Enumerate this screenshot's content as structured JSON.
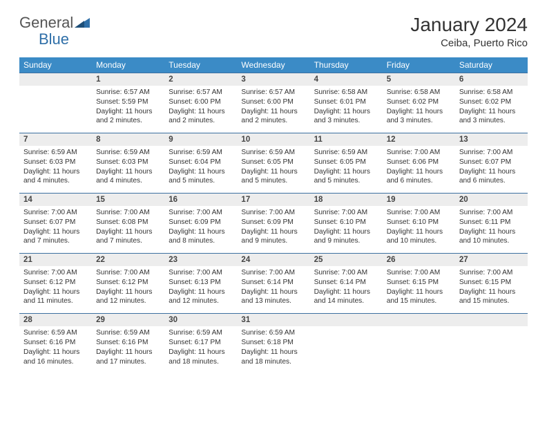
{
  "brand": {
    "part1": "General",
    "part2": "Blue"
  },
  "title": "January 2024",
  "location": "Ceiba, Puerto Rico",
  "colors": {
    "header_bg": "#3b8bc6",
    "header_text": "#ffffff",
    "daynum_bg": "#ededed",
    "row_border": "#3b6fa0",
    "text": "#333333",
    "brand_gray": "#555555",
    "brand_blue": "#2f6fa8",
    "page_bg": "#ffffff"
  },
  "typography": {
    "title_fontsize": 28,
    "location_fontsize": 15,
    "header_fontsize": 12,
    "daynum_fontsize": 11.5,
    "cell_fontsize": 10.2
  },
  "headers": [
    "Sunday",
    "Monday",
    "Tuesday",
    "Wednesday",
    "Thursday",
    "Friday",
    "Saturday"
  ],
  "weeks": [
    {
      "nums": [
        "",
        "1",
        "2",
        "3",
        "4",
        "5",
        "6"
      ],
      "cells": [
        {
          "empty": true
        },
        {
          "sunrise": "6:57 AM",
          "sunset": "5:59 PM",
          "daylight": "11 hours and 2 minutes."
        },
        {
          "sunrise": "6:57 AM",
          "sunset": "6:00 PM",
          "daylight": "11 hours and 2 minutes."
        },
        {
          "sunrise": "6:57 AM",
          "sunset": "6:00 PM",
          "daylight": "11 hours and 2 minutes."
        },
        {
          "sunrise": "6:58 AM",
          "sunset": "6:01 PM",
          "daylight": "11 hours and 3 minutes."
        },
        {
          "sunrise": "6:58 AM",
          "sunset": "6:02 PM",
          "daylight": "11 hours and 3 minutes."
        },
        {
          "sunrise": "6:58 AM",
          "sunset": "6:02 PM",
          "daylight": "11 hours and 3 minutes."
        }
      ]
    },
    {
      "nums": [
        "7",
        "8",
        "9",
        "10",
        "11",
        "12",
        "13"
      ],
      "cells": [
        {
          "sunrise": "6:59 AM",
          "sunset": "6:03 PM",
          "daylight": "11 hours and 4 minutes."
        },
        {
          "sunrise": "6:59 AM",
          "sunset": "6:03 PM",
          "daylight": "11 hours and 4 minutes."
        },
        {
          "sunrise": "6:59 AM",
          "sunset": "6:04 PM",
          "daylight": "11 hours and 5 minutes."
        },
        {
          "sunrise": "6:59 AM",
          "sunset": "6:05 PM",
          "daylight": "11 hours and 5 minutes."
        },
        {
          "sunrise": "6:59 AM",
          "sunset": "6:05 PM",
          "daylight": "11 hours and 5 minutes."
        },
        {
          "sunrise": "7:00 AM",
          "sunset": "6:06 PM",
          "daylight": "11 hours and 6 minutes."
        },
        {
          "sunrise": "7:00 AM",
          "sunset": "6:07 PM",
          "daylight": "11 hours and 6 minutes."
        }
      ]
    },
    {
      "nums": [
        "14",
        "15",
        "16",
        "17",
        "18",
        "19",
        "20"
      ],
      "cells": [
        {
          "sunrise": "7:00 AM",
          "sunset": "6:07 PM",
          "daylight": "11 hours and 7 minutes."
        },
        {
          "sunrise": "7:00 AM",
          "sunset": "6:08 PM",
          "daylight": "11 hours and 7 minutes."
        },
        {
          "sunrise": "7:00 AM",
          "sunset": "6:09 PM",
          "daylight": "11 hours and 8 minutes."
        },
        {
          "sunrise": "7:00 AM",
          "sunset": "6:09 PM",
          "daylight": "11 hours and 9 minutes."
        },
        {
          "sunrise": "7:00 AM",
          "sunset": "6:10 PM",
          "daylight": "11 hours and 9 minutes."
        },
        {
          "sunrise": "7:00 AM",
          "sunset": "6:10 PM",
          "daylight": "11 hours and 10 minutes."
        },
        {
          "sunrise": "7:00 AM",
          "sunset": "6:11 PM",
          "daylight": "11 hours and 10 minutes."
        }
      ]
    },
    {
      "nums": [
        "21",
        "22",
        "23",
        "24",
        "25",
        "26",
        "27"
      ],
      "cells": [
        {
          "sunrise": "7:00 AM",
          "sunset": "6:12 PM",
          "daylight": "11 hours and 11 minutes."
        },
        {
          "sunrise": "7:00 AM",
          "sunset": "6:12 PM",
          "daylight": "11 hours and 12 minutes."
        },
        {
          "sunrise": "7:00 AM",
          "sunset": "6:13 PM",
          "daylight": "11 hours and 12 minutes."
        },
        {
          "sunrise": "7:00 AM",
          "sunset": "6:14 PM",
          "daylight": "11 hours and 13 minutes."
        },
        {
          "sunrise": "7:00 AM",
          "sunset": "6:14 PM",
          "daylight": "11 hours and 14 minutes."
        },
        {
          "sunrise": "7:00 AM",
          "sunset": "6:15 PM",
          "daylight": "11 hours and 15 minutes."
        },
        {
          "sunrise": "7:00 AM",
          "sunset": "6:15 PM",
          "daylight": "11 hours and 15 minutes."
        }
      ]
    },
    {
      "nums": [
        "28",
        "29",
        "30",
        "31",
        "",
        "",
        ""
      ],
      "cells": [
        {
          "sunrise": "6:59 AM",
          "sunset": "6:16 PM",
          "daylight": "11 hours and 16 minutes."
        },
        {
          "sunrise": "6:59 AM",
          "sunset": "6:16 PM",
          "daylight": "11 hours and 17 minutes."
        },
        {
          "sunrise": "6:59 AM",
          "sunset": "6:17 PM",
          "daylight": "11 hours and 18 minutes."
        },
        {
          "sunrise": "6:59 AM",
          "sunset": "6:18 PM",
          "daylight": "11 hours and 18 minutes."
        },
        {
          "empty": true
        },
        {
          "empty": true
        },
        {
          "empty": true
        }
      ]
    }
  ],
  "labels": {
    "sunrise_prefix": "Sunrise: ",
    "sunset_prefix": "Sunset: ",
    "daylight_prefix": "Daylight: "
  }
}
